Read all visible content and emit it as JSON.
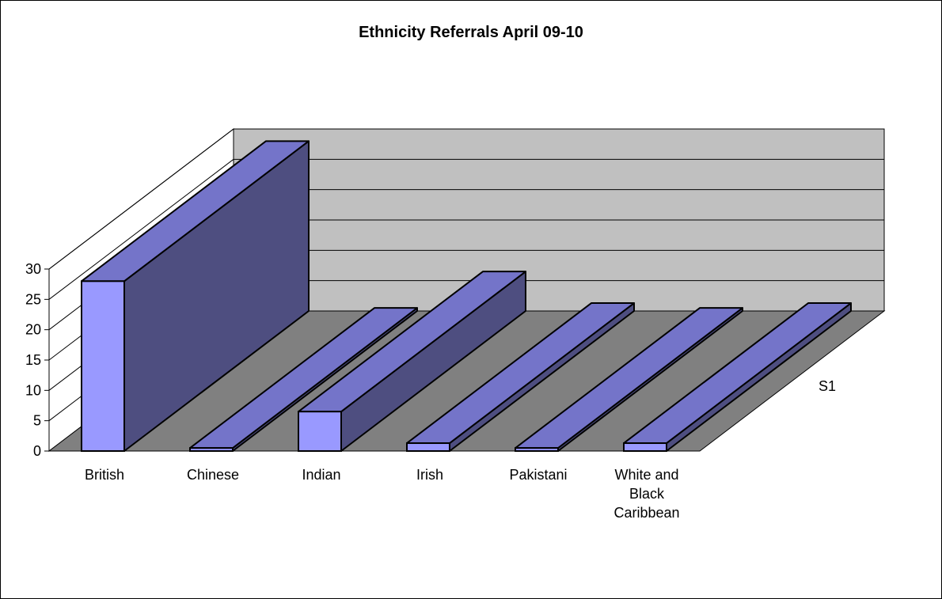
{
  "chart_data": {
    "type": "bar",
    "title": "Ethnicity Referrals April 09-10",
    "categories": [
      "British",
      "Chinese",
      "Indian",
      "Irish",
      "Pakistani",
      "White and Black Caribbean"
    ],
    "series": [
      {
        "name": "S1",
        "values": [
          28,
          0.5,
          6.5,
          1.3,
          0.5,
          1.3
        ]
      }
    ],
    "ylim": [
      0,
      30
    ],
    "yticks": [
      "0",
      "5",
      "10",
      "15",
      "20",
      "25",
      "30"
    ],
    "grid": true,
    "legend": "none",
    "style": "3d-column"
  },
  "colors": {
    "bar_front": "#9999ff",
    "bar_top": "#7474c9",
    "bar_side": "#4e4e80",
    "wall": "#c0c0c0",
    "floor": "#808080"
  }
}
